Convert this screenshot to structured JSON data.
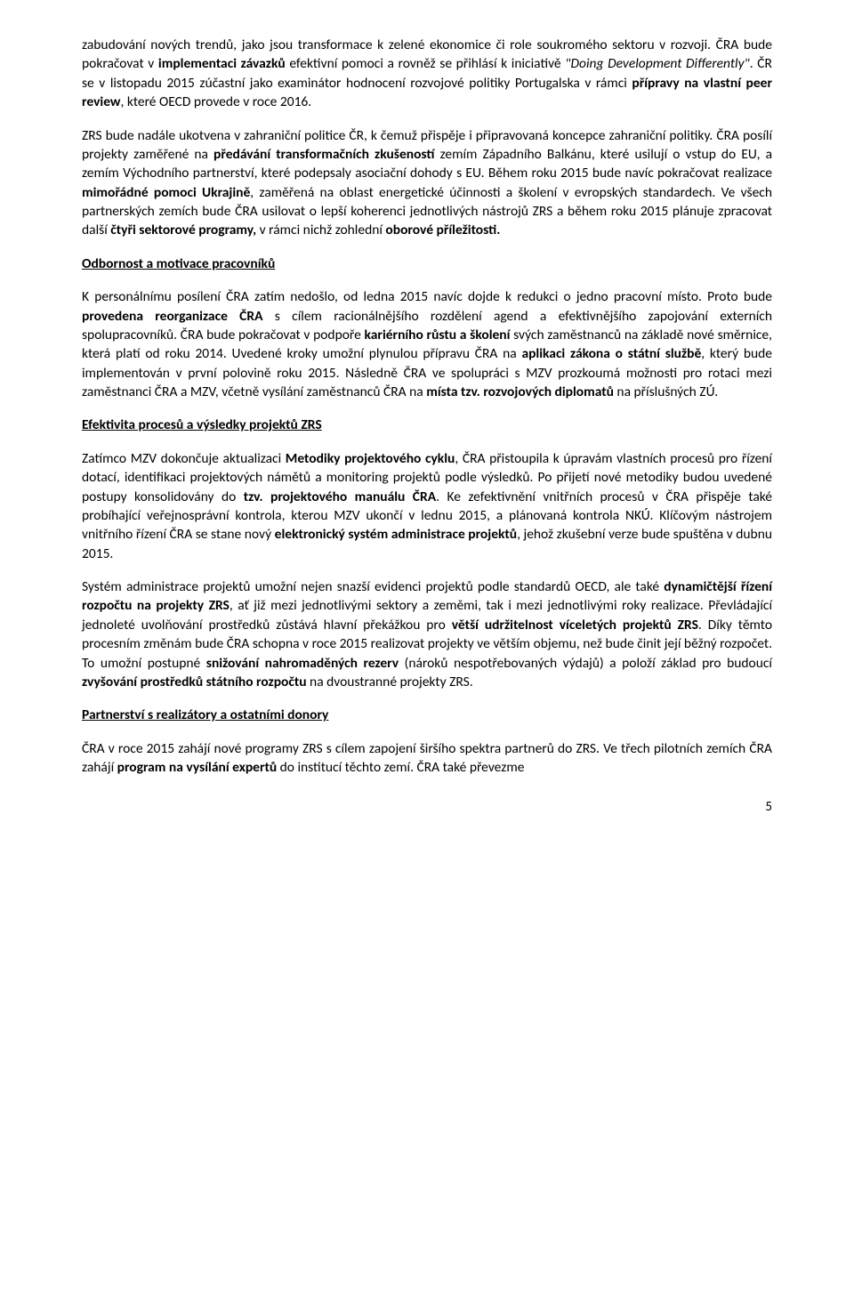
{
  "paragraphs": {
    "p1_pre": "zabudování nových trendů, jako jsou transformace k zelené ekonomice či role soukromého sektoru v rozvoji. ČRA bude pokračovat v ",
    "p1_b1": "implementaci závazků",
    "p1_mid1": " efektivní pomoci a rovněž se přihlásí k iniciativě ",
    "p1_i1": "\"Doing Development Differently\"",
    "p1_mid2": ". ČR se v listopadu 2015 zúčastní jako examinátor hodnocení rozvojové politiky Portugalska v rámci ",
    "p1_b2": "přípravy na vlastní peer review",
    "p1_end": ", které OECD provede v roce 2016.",
    "p2_pre": "ZRS bude nadále ukotvena v zahraniční politice ČR, k čemuž přispěje i připravovaná koncepce zahraniční politiky. ČRA posílí projekty zaměřené na ",
    "p2_b1": "předávání transformačních zkušeností",
    "p2_mid1": " zemím Západního Balkánu, které usilují o vstup do EU, a zemím Východního partnerství, které podepsaly asociační dohody s EU. Během roku 2015 bude navíc pokračovat realizace ",
    "p2_b2": "mimořádné pomoci Ukrajině",
    "p2_mid2": ", zaměřená na oblast energetické účinnosti a školení v evropských standardech. Ve všech partnerských zemích bude ČRA usilovat o lepší koherenci jednotlivých nástrojů ZRS a během roku 2015 plánuje zpracovat další ",
    "p2_b3": "čtyři sektorové programy,",
    "p2_mid3": " v rámci nichž zohlední ",
    "p2_b4": "oborové příležitosti.",
    "h1": "Odbornost a motivace pracovníků",
    "p3_pre": "K personálnímu posílení ČRA zatím nedošlo, od ledna 2015 navíc dojde k redukci o jedno pracovní místo. Proto bude ",
    "p3_b1": "provedena reorganizace ČRA",
    "p3_mid1": " s cílem racionálnějšího rozdělení agend a efektivnějšího zapojování externích spolupracovníků. ČRA bude pokračovat v podpoře ",
    "p3_b2": "kariérního růstu a školení",
    "p3_mid2": " svých zaměstnanců na základě nové směrnice, která platí od roku 2014. Uvedené kroky umožní plynulou přípravu ČRA na ",
    "p3_b3": "aplikaci zákona o státní službě",
    "p3_mid3": ", který bude implementován v první polovině roku 2015. Následně ČRA ve spolupráci s MZV prozkoumá možnosti pro rotaci mezi zaměstnanci ČRA a MZV, včetně vysílání zaměstnanců ČRA na ",
    "p3_b4": "místa tzv. rozvojových diplomatů",
    "p3_end": " na příslušných ZÚ.",
    "h2": "Efektivita procesů a výsledky projektů ZRS",
    "p4_pre": "Zatímco MZV dokončuje aktualizaci ",
    "p4_b1": "Metodiky projektového cyklu",
    "p4_mid1": ", ČRA přistoupila k úpravám vlastních procesů pro řízení dotací, identifikaci projektových námětů a monitoring projektů podle výsledků. Po přijetí nové metodiky budou uvedené postupy konsolidovány do ",
    "p4_b2": "tzv. projektového manuálu ČRA",
    "p4_mid2": ". Ke zefektivnění vnitřních procesů v ČRA přispěje také probíhající veřejnosprávní kontrola, kterou MZV ukončí v lednu 2015, a plánovaná kontrola NKÚ. Klíčovým nástrojem vnitřního řízení ČRA se stane nový ",
    "p4_b3": "elektronický systém administrace projektů",
    "p4_end": ", jehož zkušební verze bude spuštěna v dubnu 2015.",
    "p5_pre": "Systém administrace projektů umožní nejen snazší evidenci projektů podle standardů OECD, ale také ",
    "p5_b1": "dynamičtější řízení rozpočtu na projekty ZRS",
    "p5_mid1": ", ať již mezi jednotlivými sektory a zeměmi, tak i mezi jednotlivými roky realizace. Převládající jednoleté uvolňování prostředků zůstává hlavní překážkou pro ",
    "p5_b2": "větší udržitelnost víceletých projektů ZRS",
    "p5_mid2": ". Díky těmto procesním změnám bude ČRA schopna v roce 2015 realizovat projekty ve větším objemu, než bude činit její běžný rozpočet. To umožní postupné ",
    "p5_b3": "snižování nahromaděných rezerv",
    "p5_mid3": " (nároků nespotřebovaných výdajů) a položí základ pro budoucí ",
    "p5_b4": "zvyšování prostředků státního rozpočtu",
    "p5_end": " na dvoustranné projekty ZRS.",
    "h3": "Partnerství s realizátory a ostatními donory",
    "p6_pre": "ČRA v roce 2015 zahájí nové programy ZRS s cílem zapojení širšího spektra partnerů do ZRS. Ve třech pilotních zemích ČRA zahájí ",
    "p6_b1": "program na vysílání expertů",
    "p6_end": " do institucí těchto zemí. ČRA také převezme"
  },
  "page_number": "5"
}
